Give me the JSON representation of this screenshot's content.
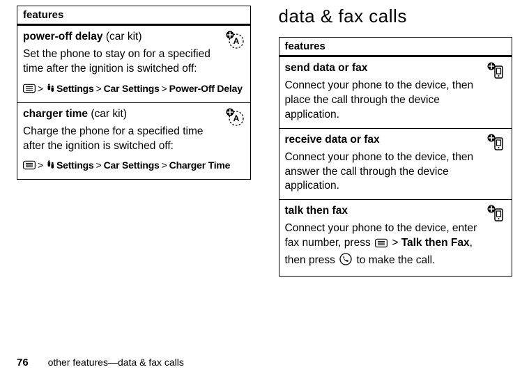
{
  "left": {
    "header": "features",
    "rows": [
      {
        "name": "power-off delay",
        "context": "(car kit)",
        "iconType": "auto",
        "desc": "Set the phone to stay on for a specified time after the ignition is switched off:",
        "pathStart": "menu-key",
        "pathSegments": [
          "Settings",
          "Car Settings",
          "Power-Off Delay"
        ],
        "settingsIcon": true
      },
      {
        "name": "charger time",
        "context": "(car kit)",
        "iconType": "auto",
        "desc": "Charge the phone for a specified time after the ignition is switched off:",
        "pathStart": "menu-key",
        "pathSegments": [
          "Settings",
          "Car Settings",
          "Charger Time"
        ],
        "settingsIcon": true
      }
    ]
  },
  "rightTitle": "data & fax calls",
  "right": {
    "header": "features",
    "rows": [
      {
        "name": "send data or fax",
        "iconType": "data",
        "desc": "Connect your phone to the device, then place the call through the device application."
      },
      {
        "name": "receive data or fax",
        "iconType": "data",
        "desc": "Connect your phone to the device, then answer the call through the device application."
      },
      {
        "name": "talk then fax",
        "iconType": "data",
        "descParts": [
          {
            "t": "text",
            "v": "Connect your phone to the device, enter fax number, press "
          },
          {
            "t": "menu-key"
          },
          {
            "t": "text",
            "v": " > "
          },
          {
            "t": "bold",
            "v": "Talk then Fax"
          },
          {
            "t": "text",
            "v": ", then press "
          },
          {
            "t": "send-key"
          },
          {
            "t": "text",
            "v": " to make the call."
          }
        ]
      }
    ]
  },
  "footer": {
    "page": "76",
    "text": "other features—data & fax calls"
  }
}
